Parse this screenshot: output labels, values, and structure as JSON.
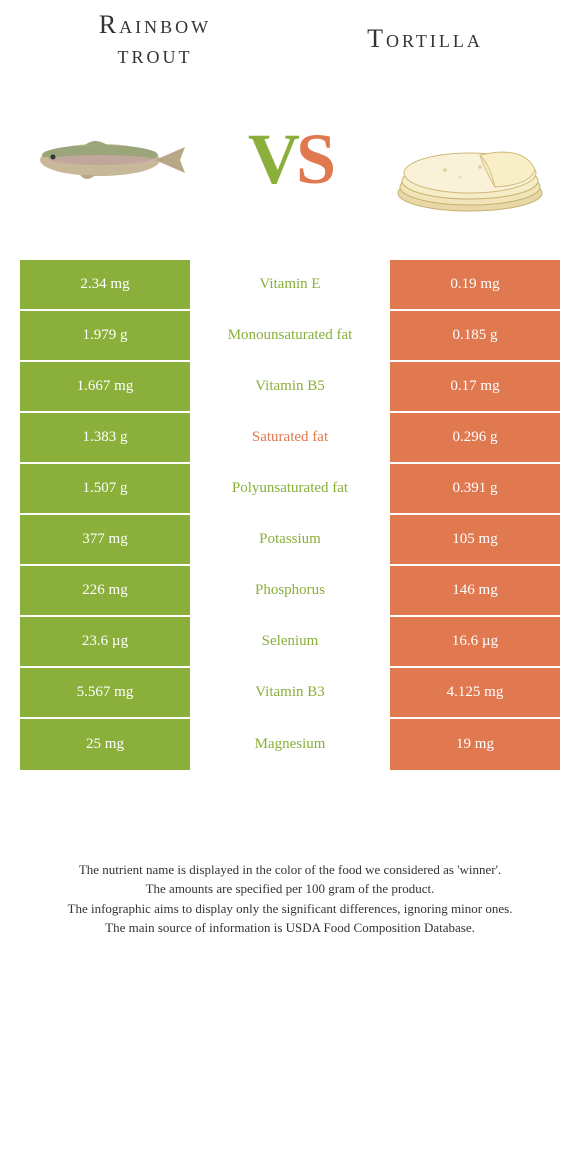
{
  "colors": {
    "green": "#8aaf3a",
    "orange": "#e07850",
    "text": "#333333"
  },
  "food1": {
    "title": "Rainbow\ntrout"
  },
  "food2": {
    "title": "Tortilla"
  },
  "vs": {
    "v": "V",
    "s": "S"
  },
  "rows": [
    {
      "left": "2.34 mg",
      "mid": "Vitamin E",
      "right": "0.19 mg",
      "winner": "left"
    },
    {
      "left": "1.979 g",
      "mid": "Monounsaturated fat",
      "right": "0.185 g",
      "winner": "left"
    },
    {
      "left": "1.667 mg",
      "mid": "Vitamin B5",
      "right": "0.17 mg",
      "winner": "left"
    },
    {
      "left": "1.383 g",
      "mid": "Saturated fat",
      "right": "0.296 g",
      "winner": "right"
    },
    {
      "left": "1.507 g",
      "mid": "Polyunsaturated fat",
      "right": "0.391 g",
      "winner": "left"
    },
    {
      "left": "377 mg",
      "mid": "Potassium",
      "right": "105 mg",
      "winner": "left"
    },
    {
      "left": "226 mg",
      "mid": "Phosphorus",
      "right": "146 mg",
      "winner": "left"
    },
    {
      "left": "23.6 µg",
      "mid": "Selenium",
      "right": "16.6 µg",
      "winner": "left"
    },
    {
      "left": "5.567 mg",
      "mid": "Vitamin B3",
      "right": "4.125 mg",
      "winner": "left"
    },
    {
      "left": "25 mg",
      "mid": "Magnesium",
      "right": "19 mg",
      "winner": "left"
    }
  ],
  "footer": {
    "l1": "The nutrient name is displayed in the color of the food we considered as 'winner'.",
    "l2": "The amounts are specified per 100 gram of the product.",
    "l3": "The infographic aims to display only the significant differences, ignoring minor ones.",
    "l4": "The main source of information is USDA Food Composition Database."
  }
}
